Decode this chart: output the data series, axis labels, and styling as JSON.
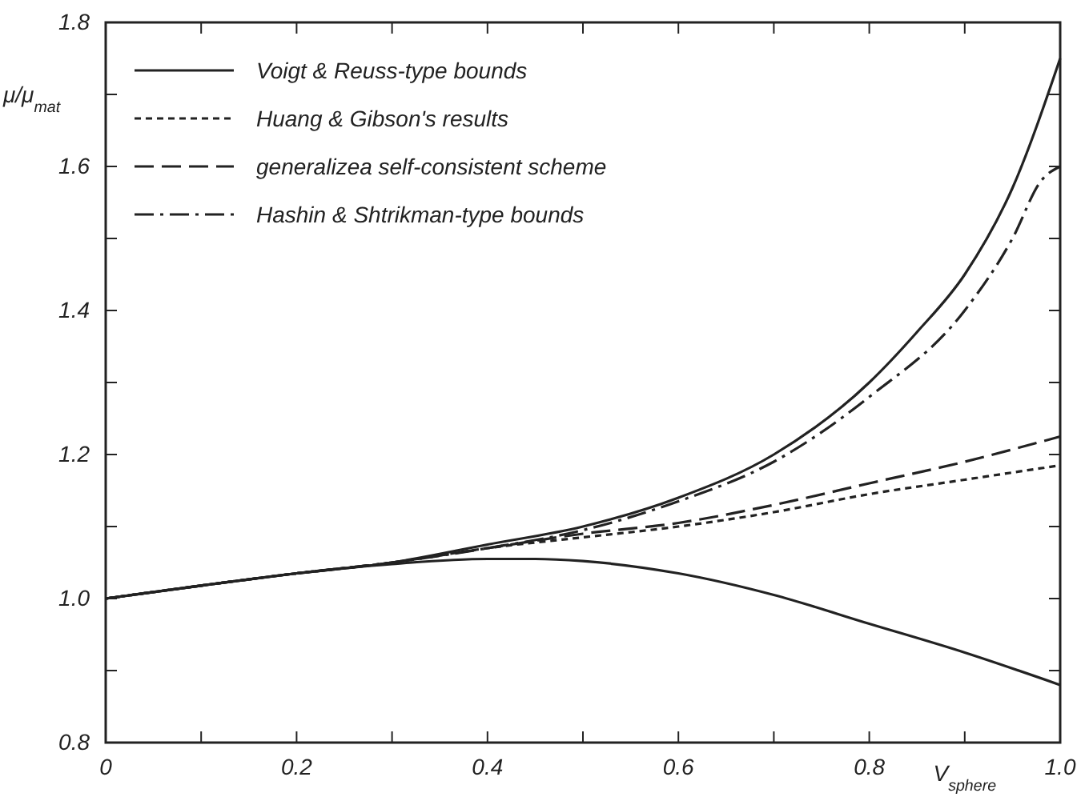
{
  "chart_data": {
    "type": "line",
    "xlabel": "V$_{sphere}$",
    "ylabel": "μ/μ$_{mat}$",
    "xlim": [
      0,
      1.0
    ],
    "ylim": [
      0.8,
      1.8
    ],
    "xticks": [
      {
        "value": 0,
        "label": "0"
      },
      {
        "value": 0.1,
        "label": null
      },
      {
        "value": 0.2,
        "label": "0.2"
      },
      {
        "value": 0.3,
        "label": null
      },
      {
        "value": 0.4,
        "label": "0.4"
      },
      {
        "value": 0.5,
        "label": null
      },
      {
        "value": 0.6,
        "label": "0.6"
      },
      {
        "value": 0.7,
        "label": null
      },
      {
        "value": 0.8,
        "label": "0.8"
      },
      {
        "value": 0.9,
        "label": null
      },
      {
        "value": 1.0,
        "label": "1.0"
      }
    ],
    "yticks": [
      {
        "value": 0.8,
        "label": "0.8"
      },
      {
        "value": 0.9,
        "label": null
      },
      {
        "value": 1.0,
        "label": "1.0"
      },
      {
        "value": 1.1,
        "label": null
      },
      {
        "value": 1.2,
        "label": "1.2"
      },
      {
        "value": 1.3,
        "label": null
      },
      {
        "value": 1.4,
        "label": "1.4"
      },
      {
        "value": 1.5,
        "label": null
      },
      {
        "value": 1.6,
        "label": "1.6"
      },
      {
        "value": 1.7,
        "label": null
      },
      {
        "value": 1.8,
        "label": "1.8"
      }
    ],
    "grid": false,
    "legend": "top left",
    "marker": "none",
    "series": [
      {
        "name": "Voigt & Reuss-type bounds",
        "color": "#222222",
        "line_style": "solid",
        "x": [
          0,
          0.1,
          0.2,
          0.3,
          0.4,
          0.5,
          0.6,
          0.7,
          0.8,
          0.85,
          0.9,
          0.95,
          1.0
        ],
        "values": [
          1.0,
          1.018,
          1.035,
          1.05,
          1.075,
          1.1,
          1.14,
          1.2,
          1.3,
          1.37,
          1.45,
          1.57,
          1.75
        ]
      },
      {
        "name": "Huang & Gibson's results",
        "color": "#222222",
        "line_style": "dotted",
        "x": [
          0,
          0.1,
          0.2,
          0.3,
          0.4,
          0.5,
          0.6,
          0.7,
          0.8,
          0.9,
          1.0
        ],
        "values": [
          1.0,
          1.018,
          1.035,
          1.05,
          1.07,
          1.085,
          1.1,
          1.12,
          1.145,
          1.165,
          1.185
        ]
      },
      {
        "name": "generalizea self-consistent scheme",
        "color": "#222222",
        "line_style": "dashed",
        "x": [
          0,
          0.1,
          0.2,
          0.3,
          0.4,
          0.5,
          0.6,
          0.7,
          0.8,
          0.9,
          1.0
        ],
        "values": [
          1.0,
          1.018,
          1.035,
          1.05,
          1.07,
          1.09,
          1.105,
          1.13,
          1.16,
          1.19,
          1.225
        ]
      },
      {
        "name": "Hashin & Shtrikman-type bounds",
        "color": "#222222",
        "line_style": "dashdot",
        "x": [
          0,
          0.1,
          0.2,
          0.3,
          0.4,
          0.5,
          0.6,
          0.7,
          0.8,
          0.9,
          0.95,
          0.98,
          1.0
        ],
        "values": [
          1.0,
          1.018,
          1.035,
          1.05,
          1.07,
          1.095,
          1.135,
          1.19,
          1.28,
          1.4,
          1.5,
          1.58,
          1.6
        ]
      },
      {
        "color": "#222222",
        "line_style": "solid",
        "x": [
          0,
          0.1,
          0.2,
          0.3,
          0.4,
          0.45,
          0.5,
          0.6,
          0.7,
          0.8,
          0.9,
          1.0
        ],
        "values": [
          1.0,
          1.018,
          1.035,
          1.048,
          1.055,
          1.055,
          1.052,
          1.035,
          1.005,
          0.965,
          0.925,
          0.88
        ]
      }
    ]
  }
}
